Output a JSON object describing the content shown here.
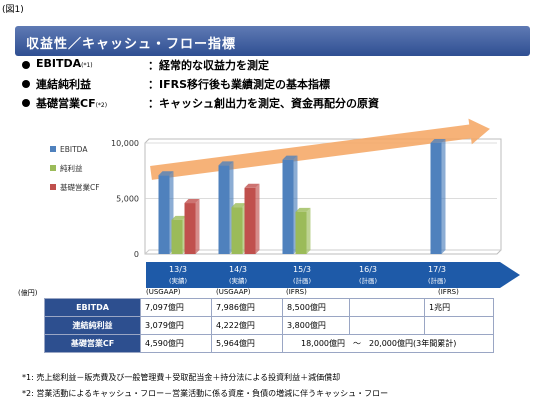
{
  "figure_number": "(図1)",
  "title": "収益性／キャッシュ・フロー指標",
  "bullets": [
    {
      "term": "EBITDA",
      "mark": "(*1)",
      "desc": "：経常的な収益力を測定"
    },
    {
      "term": "連結純利益",
      "mark": "",
      "desc": "：IFRS移行後も業績測定の基本指標"
    },
    {
      "term": "基礎営業CF",
      "mark": "(*2)",
      "desc": "：キャッシュ創出力を測定、資金再配分の原資"
    }
  ],
  "chart_data": {
    "type": "bar",
    "categories": [
      "13/3\n(実績)",
      "14/3\n(実績)",
      "15/3\n(計画)",
      "16/3\n(計画)",
      "17/3\n(計画)"
    ],
    "series": [
      {
        "name": "EBITDA",
        "values": [
          7097,
          7986,
          8500,
          null,
          10000
        ],
        "color": "#4f81bd"
      },
      {
        "name": "純利益",
        "values": [
          3079,
          4222,
          3800,
          null,
          null
        ],
        "color": "#9bbb59"
      },
      {
        "name": "基礎営業CF",
        "values": [
          4590,
          5964,
          null,
          null,
          null
        ],
        "color": "#c0504d"
      }
    ],
    "ylim": [
      0,
      10000
    ],
    "yticks": [
      "0",
      "5,000",
      "10,000"
    ],
    "ylabel": "(億円)",
    "legend_position": "left",
    "trend_arrow_color": "#f4a460"
  },
  "timeline": {
    "periods": [
      {
        "year": "13/3",
        "status": "(実績)"
      },
      {
        "year": "14/3",
        "status": "(実績)"
      },
      {
        "year": "15/3",
        "status": "(計画)"
      },
      {
        "year": "16/3",
        "status": "(計画)"
      },
      {
        "year": "17/3",
        "status": "(計画)"
      }
    ]
  },
  "table": {
    "unit": "(億円)",
    "standards": [
      "(USGAAP)",
      "(USGAAP)",
      "(IFRS)",
      "(IFRS)"
    ],
    "rows": [
      {
        "label": "EBITDA",
        "c1": "7,097億円",
        "c2": "7,986億円",
        "c3": "8,500億円",
        "c5": "1兆円"
      },
      {
        "label": "連結純利益",
        "c1": "3,079億円",
        "c2": "4,222億円",
        "c3": "3,800億円"
      },
      {
        "label": "基礎営業CF",
        "c1": "4,590億円",
        "c2": "5,964億円",
        "span": "18,000億円　～　20,000億円(3年間累計)"
      }
    ]
  },
  "notes": [
    "*1: 売上総利益－販売費及び一般管理費＋受取配当金＋持分法による投資利益＋減価償却",
    "*2: 営業活動によるキャッシュ・フロー－営業活動に係る資産・負債の増減に伴うキャッシュ・フロー"
  ]
}
